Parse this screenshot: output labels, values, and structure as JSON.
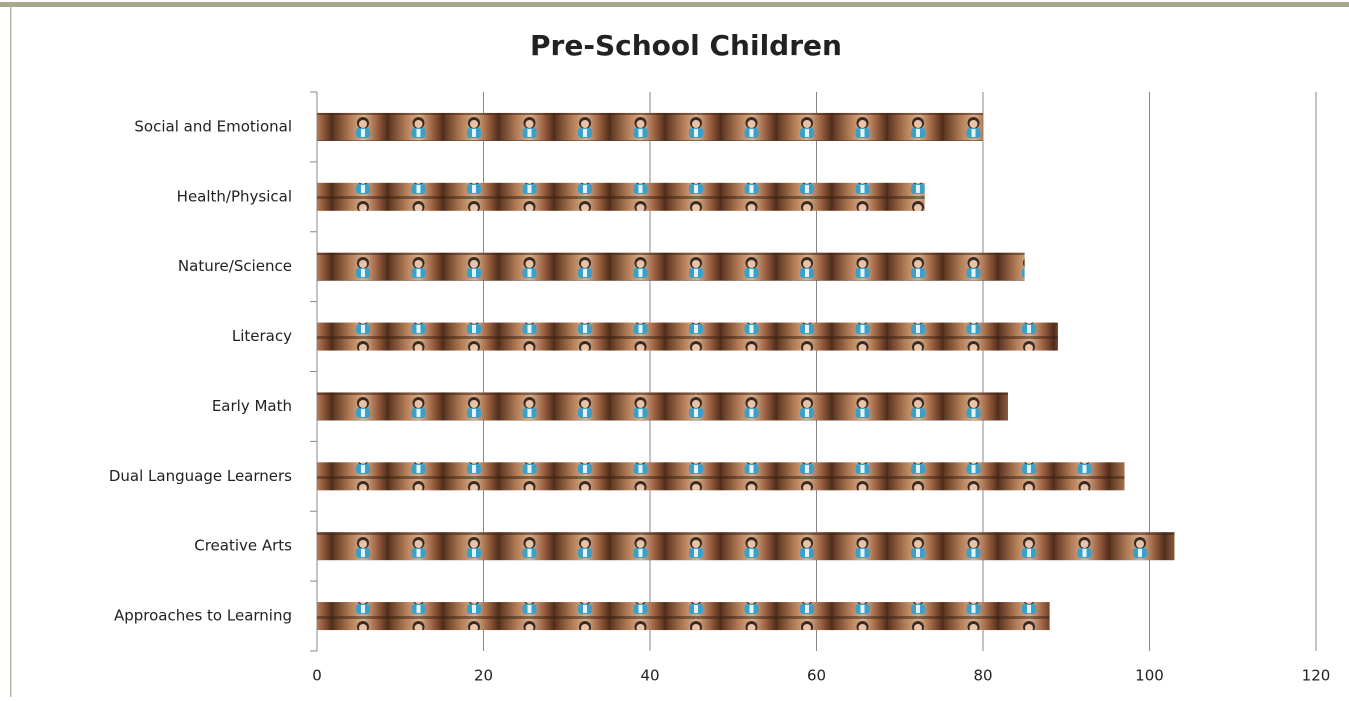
{
  "chart_data": {
    "type": "barh",
    "title": "Pre-School Children",
    "categories": [
      "Social and Emotional",
      "Health/Physical",
      "Nature/Science",
      "Literacy",
      "Early Math",
      "Dual Language Learners",
      "Creative Arts",
      "Approaches to Learning"
    ],
    "values": [
      80,
      73,
      85,
      89,
      83,
      97,
      103,
      88
    ],
    "xlim": [
      0,
      120
    ],
    "xticks": [
      0,
      20,
      40,
      60,
      80,
      100,
      120
    ],
    "grid": true
  }
}
